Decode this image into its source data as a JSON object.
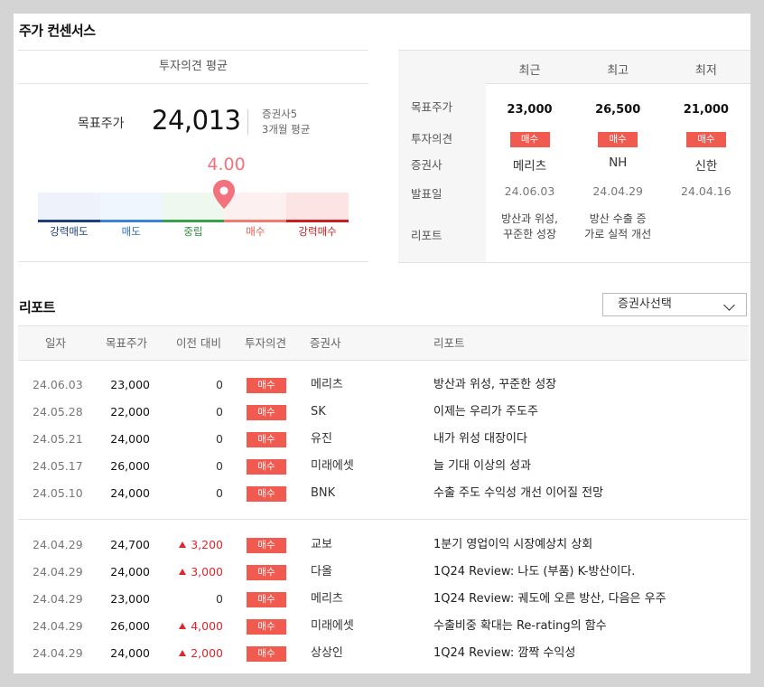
{
  "consensus": {
    "title": "주가 컨센서스",
    "left_header": "투자의견 평균",
    "target_label": "목표주가",
    "target_value": "24,013",
    "firms_count": "증권사5",
    "period": "3개월 평균",
    "avg_score": "4.00",
    "avg_score_fraction": 0.6,
    "gauge": [
      {
        "label": "강력매도",
        "bg": "#edf2fb",
        "line": "#1f3f7a",
        "text": "#1f3f7a"
      },
      {
        "label": "매도",
        "bg": "#f0f6fd",
        "line": "#3b82d8",
        "text": "#2f6fc0"
      },
      {
        "label": "중립",
        "bg": "#eef8ee",
        "line": "#3aa04a",
        "text": "#2f8f3e"
      },
      {
        "label": "매수",
        "bg": "#fdf0f0",
        "line": "#f07d70",
        "text": "#e4584c"
      },
      {
        "label": "강력매수",
        "bg": "#fde4e4",
        "line": "#c82020",
        "text": "#c21f1f"
      }
    ],
    "pin_color": "#f2737d"
  },
  "summary": {
    "row_labels": [
      "목표주가",
      "투자의견",
      "증권사",
      "발표일",
      "리포트"
    ],
    "columns": [
      {
        "head": "최근",
        "price": "23,000",
        "opinion": "매수",
        "firm": "메리츠",
        "date": "24.06.03",
        "report": [
          "방산과 위성,",
          "꾸준한 성장"
        ]
      },
      {
        "head": "최고",
        "price": "26,500",
        "opinion": "매수",
        "firm": "NH",
        "date": "24.04.29",
        "report": [
          "방산 수출 증",
          "가로 실적 개선"
        ]
      },
      {
        "head": "최저",
        "price": "21,000",
        "opinion": "매수",
        "firm": "신한",
        "date": "24.04.16",
        "report": []
      }
    ]
  },
  "reports": {
    "title": "리포트",
    "select_label": "증권사선택",
    "headers": [
      "일자",
      "목표주가",
      "이전 대비",
      "투자의견",
      "증권사",
      "리포트"
    ],
    "rows": [
      {
        "date": "24.06.03",
        "price": "23,000",
        "diff": "0",
        "up": false,
        "opinion": "매수",
        "firm": "메리츠",
        "report": "방산과 위성, 꾸준한 성장"
      },
      {
        "date": "24.05.28",
        "price": "22,000",
        "diff": "0",
        "up": false,
        "opinion": "매수",
        "firm": "SK",
        "report": "이제는 우리가 주도주"
      },
      {
        "date": "24.05.21",
        "price": "24,000",
        "diff": "0",
        "up": false,
        "opinion": "매수",
        "firm": "유진",
        "report": "내가 위성 대장이다"
      },
      {
        "date": "24.05.17",
        "price": "26,000",
        "diff": "0",
        "up": false,
        "opinion": "매수",
        "firm": "미래에셋",
        "report": "늘 기대 이상의 성과"
      },
      {
        "date": "24.05.10",
        "price": "24,000",
        "diff": "0",
        "up": false,
        "opinion": "매수",
        "firm": "BNK",
        "report": "수출 주도 수익성 개선 이어질 전망"
      },
      {
        "date": "24.04.29",
        "price": "24,700",
        "diff": "3,200",
        "up": true,
        "opinion": "매수",
        "firm": "교보",
        "report": "1분기 영업이익 시장예상치 상회"
      },
      {
        "date": "24.04.29",
        "price": "24,000",
        "diff": "3,000",
        "up": true,
        "opinion": "매수",
        "firm": "다올",
        "report": "1Q24 Review: 나도 (부품) K-방산이다."
      },
      {
        "date": "24.04.29",
        "price": "23,000",
        "diff": "0",
        "up": false,
        "opinion": "매수",
        "firm": "메리츠",
        "report": "1Q24 Review: 궤도에 오른 방산, 다음은 우주"
      },
      {
        "date": "24.04.29",
        "price": "26,000",
        "diff": "4,000",
        "up": true,
        "opinion": "매수",
        "firm": "미래에셋",
        "report": "수출비중 확대는 Re-rating의 함수"
      },
      {
        "date": "24.04.29",
        "price": "24,000",
        "diff": "2,000",
        "up": true,
        "opinion": "매수",
        "firm": "상상인",
        "report": "1Q24 Review: 깜짝 수익성"
      }
    ]
  }
}
